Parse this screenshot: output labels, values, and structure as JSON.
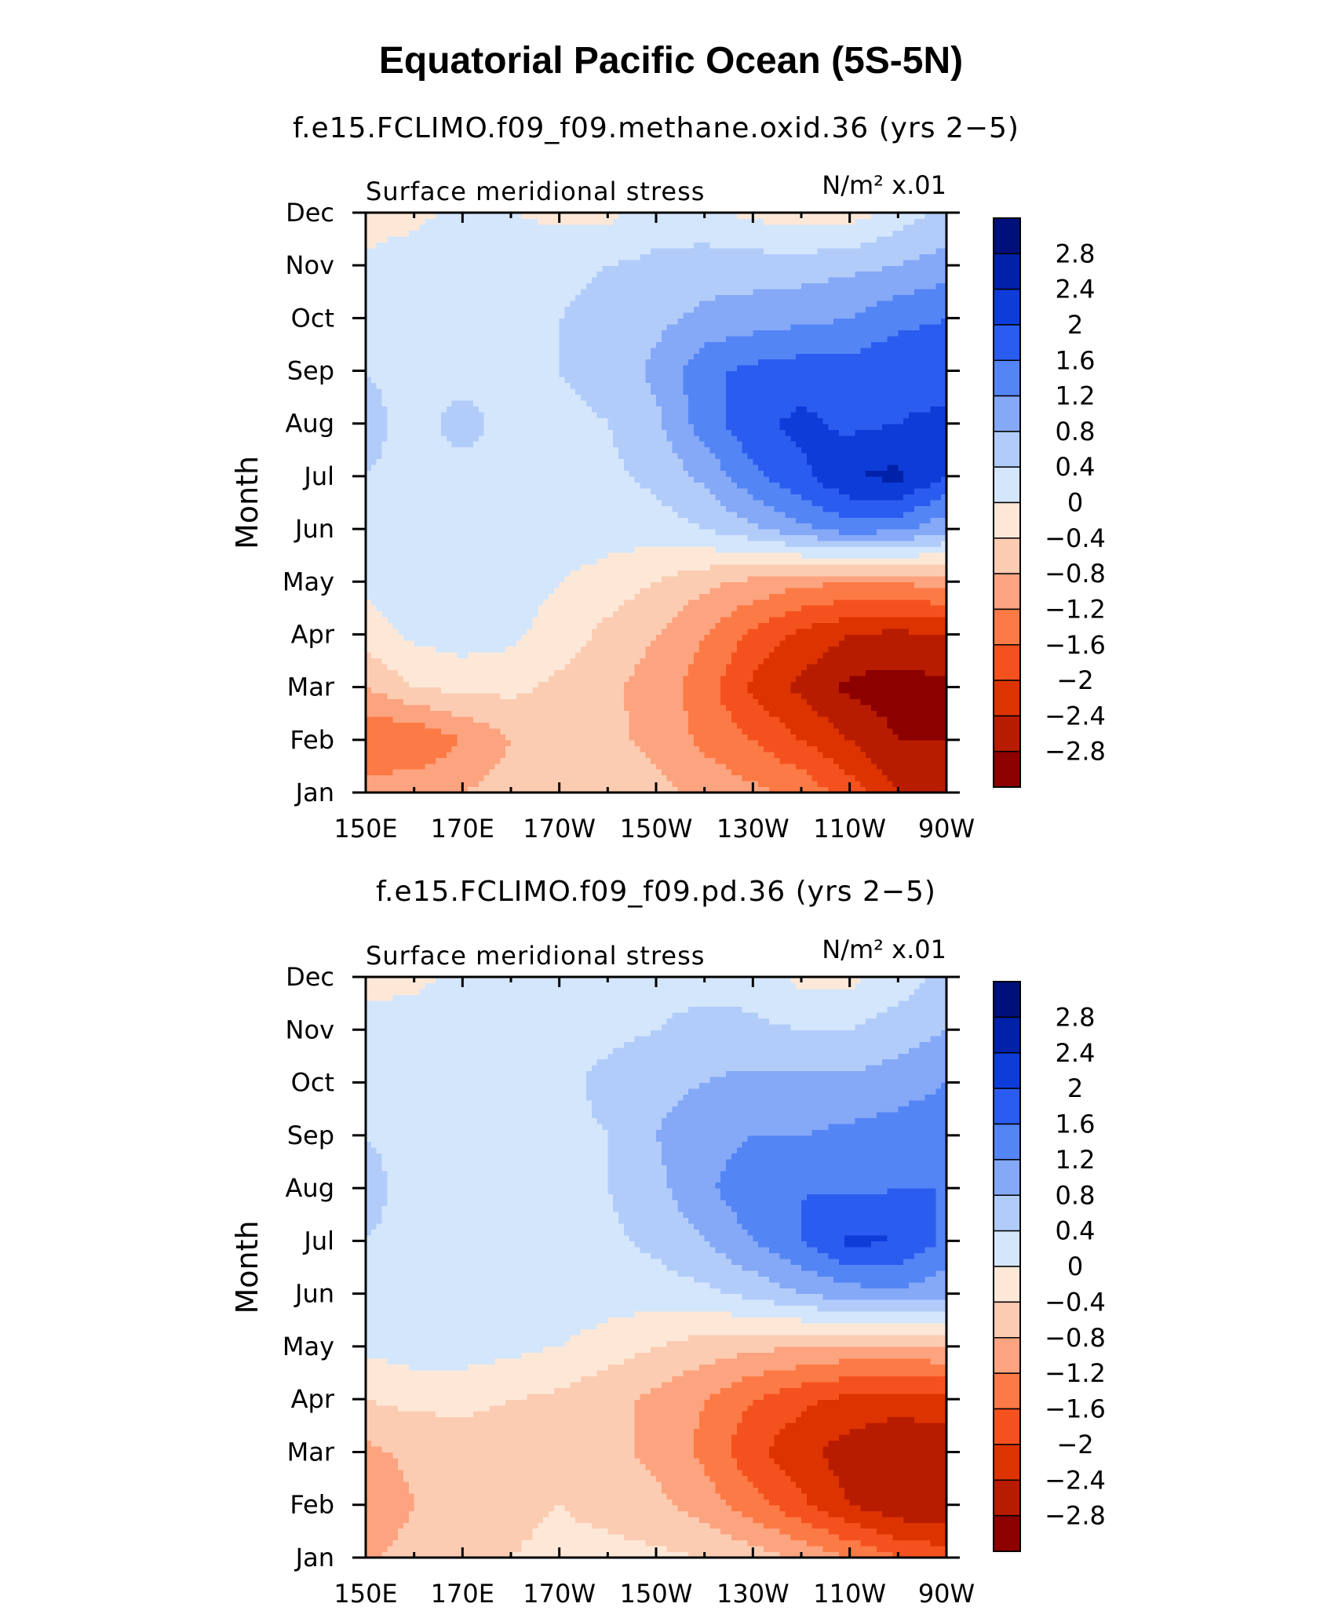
{
  "figure": {
    "title": "Equatorial Pacific Ocean (5S-5N)"
  },
  "colorbar": {
    "levels": [
      -2.8,
      -2.4,
      -2,
      -1.6,
      -1.2,
      -0.8,
      -0.4,
      0,
      0.4,
      0.8,
      1.2,
      1.6,
      2,
      2.4,
      2.8
    ],
    "labels": [
      "2.8",
      "2.4",
      "2",
      "1.6",
      "1.2",
      "0.8",
      "0.4",
      "0",
      "−0.4",
      "−0.8",
      "−1.2",
      "−1.6",
      "−2",
      "−2.4",
      "−2.8"
    ],
    "colors": [
      "#8c0000",
      "#b81c00",
      "#dc3300",
      "#f5511f",
      "#fc7a45",
      "#fca37f",
      "#fcccb2",
      "#fde8d8",
      "#d4e6fb",
      "#b2ccfa",
      "#85a8f7",
      "#5485f5",
      "#2b5cf0",
      "#0e3cd9",
      "#0022a8",
      "#00107a"
    ]
  },
  "chart_data": [
    {
      "type": "heatmap",
      "subtitle": "f.e15.FCLIMO.f09_f09.methane.oxid.36 (yrs 2−5)",
      "left_label": "Surface meridional stress",
      "units_label": "N/m² x.01",
      "ylabel": "Month",
      "xlabel": "",
      "x_ticks": [
        "150E",
        "170E",
        "170W",
        "150W",
        "130W",
        "110W",
        "90W"
      ],
      "y_ticks": [
        "Jan",
        "Feb",
        "Mar",
        "Apr",
        "May",
        "Jun",
        "Jul",
        "Aug",
        "Sep",
        "Oct",
        "Nov",
        "Dec"
      ],
      "x": [
        150,
        160,
        170,
        180,
        190,
        200,
        210,
        220,
        230,
        240,
        250,
        260,
        270
      ],
      "y": [
        "Jan",
        "Feb",
        "Mar",
        "Apr",
        "May",
        "Jun",
        "Jul",
        "Aug",
        "Sep",
        "Oct",
        "Nov",
        "Dec"
      ],
      "z": [
        [
          -1.0,
          -0.9,
          -0.8,
          -0.6,
          -0.4,
          -0.5,
          -0.7,
          -0.9,
          -1.1,
          -1.3,
          -1.8,
          -2.4,
          -2.6
        ],
        [
          -1.6,
          -1.6,
          -1.2,
          -0.8,
          -0.6,
          -0.7,
          -0.9,
          -1.3,
          -1.6,
          -2.0,
          -2.4,
          -2.8,
          -2.8
        ],
        [
          -0.8,
          -0.4,
          -0.3,
          -0.3,
          -0.5,
          -0.7,
          -1.0,
          -1.4,
          -2.1,
          -2.5,
          -2.9,
          -3.0,
          -2.9
        ],
        [
          -0.2,
          0.1,
          0.2,
          0.1,
          -0.2,
          -0.5,
          -0.8,
          -1.2,
          -1.7,
          -2.1,
          -2.4,
          -2.5,
          -2.4
        ],
        [
          0.1,
          0.2,
          0.2,
          0.2,
          0.0,
          -0.2,
          -0.4,
          -0.7,
          -0.9,
          -1.1,
          -1.2,
          -1.2,
          -1.0
        ],
        [
          0.3,
          0.3,
          0.3,
          0.3,
          0.3,
          0.2,
          0.2,
          0.4,
          0.7,
          1.1,
          1.4,
          1.3,
          0.9
        ],
        [
          0.4,
          0.3,
          0.3,
          0.3,
          0.3,
          0.3,
          0.5,
          0.9,
          1.5,
          1.9,
          2.4,
          2.5,
          2.0
        ],
        [
          0.5,
          0.3,
          0.5,
          0.3,
          0.3,
          0.4,
          0.7,
          1.4,
          1.9,
          2.1,
          1.9,
          2.0,
          2.1
        ],
        [
          0.4,
          0.3,
          0.3,
          0.3,
          0.4,
          0.5,
          0.9,
          1.5,
          1.7,
          1.8,
          1.8,
          1.9,
          1.8
        ],
        [
          0.3,
          0.2,
          0.3,
          0.3,
          0.4,
          0.5,
          0.7,
          0.9,
          1.0,
          1.1,
          1.2,
          1.5,
          1.6
        ],
        [
          0.1,
          0.2,
          0.3,
          0.3,
          0.3,
          0.4,
          0.5,
          0.6,
          0.6,
          0.6,
          0.7,
          0.8,
          1.0
        ],
        [
          -0.2,
          -0.1,
          0.1,
          0.0,
          -0.1,
          -0.1,
          0.2,
          0.1,
          -0.1,
          -0.2,
          -0.2,
          0.2,
          0.5
        ]
      ]
    },
    {
      "type": "heatmap",
      "subtitle": "f.e15.FCLIMO.f09_f09.pd.36 (yrs 2−5)",
      "left_label": "Surface meridional stress",
      "units_label": "N/m² x.01",
      "ylabel": "Month",
      "xlabel": "",
      "x_ticks": [
        "150E",
        "170E",
        "170W",
        "150W",
        "130W",
        "110W",
        "90W"
      ],
      "y_ticks": [
        "Jan",
        "Feb",
        "Mar",
        "Apr",
        "May",
        "Jun",
        "Jul",
        "Aug",
        "Sep",
        "Oct",
        "Nov",
        "Dec"
      ],
      "x": [
        150,
        160,
        170,
        180,
        190,
        200,
        210,
        220,
        230,
        240,
        250,
        260,
        270
      ],
      "y": [
        "Jan",
        "Feb",
        "Mar",
        "Apr",
        "May",
        "Jun",
        "Jul",
        "Aug",
        "Sep",
        "Oct",
        "Nov",
        "Dec"
      ],
      "z": [
        [
          -0.9,
          -0.6,
          -0.5,
          -0.4,
          -0.3,
          -0.3,
          -0.3,
          -0.4,
          -0.6,
          -0.9,
          -1.2,
          -1.6,
          -1.8
        ],
        [
          -1.2,
          -0.8,
          -0.6,
          -0.5,
          -0.4,
          -0.5,
          -0.7,
          -1.0,
          -1.4,
          -1.9,
          -2.4,
          -2.7,
          -2.7
        ],
        [
          -0.9,
          -0.7,
          -0.6,
          -0.6,
          -0.6,
          -0.7,
          -0.9,
          -1.3,
          -1.9,
          -2.3,
          -2.6,
          -2.8,
          -2.7
        ],
        [
          -0.4,
          -0.3,
          -0.3,
          -0.4,
          -0.5,
          -0.7,
          -0.9,
          -1.2,
          -1.6,
          -1.9,
          -2.1,
          -2.2,
          -2.1
        ],
        [
          0.1,
          0.2,
          0.2,
          0.1,
          0.0,
          -0.2,
          -0.4,
          -0.6,
          -0.7,
          -0.8,
          -0.9,
          -0.9,
          -0.8
        ],
        [
          0.3,
          0.3,
          0.3,
          0.3,
          0.3,
          0.2,
          0.2,
          0.3,
          0.5,
          0.8,
          1.0,
          1.1,
          0.9
        ],
        [
          0.4,
          0.3,
          0.3,
          0.3,
          0.3,
          0.3,
          0.5,
          0.8,
          1.2,
          1.6,
          2.1,
          2.0,
          1.5
        ],
        [
          0.5,
          0.3,
          0.3,
          0.3,
          0.3,
          0.4,
          0.7,
          1.1,
          1.5,
          1.6,
          1.5,
          1.6,
          1.6
        ],
        [
          0.4,
          0.3,
          0.3,
          0.3,
          0.3,
          0.4,
          0.8,
          1.0,
          1.2,
          1.2,
          1.3,
          1.4,
          1.5
        ],
        [
          0.2,
          0.2,
          0.3,
          0.3,
          0.3,
          0.5,
          0.7,
          0.8,
          0.9,
          0.9,
          0.9,
          1.0,
          1.2
        ],
        [
          0.1,
          0.2,
          0.3,
          0.3,
          0.3,
          0.3,
          0.4,
          0.6,
          0.5,
          0.4,
          0.4,
          0.6,
          0.8
        ],
        [
          -0.1,
          -0.1,
          0.1,
          0.2,
          0.2,
          0.2,
          0.2,
          0.2,
          0.2,
          -0.1,
          -0.1,
          0.2,
          0.5
        ]
      ]
    }
  ]
}
